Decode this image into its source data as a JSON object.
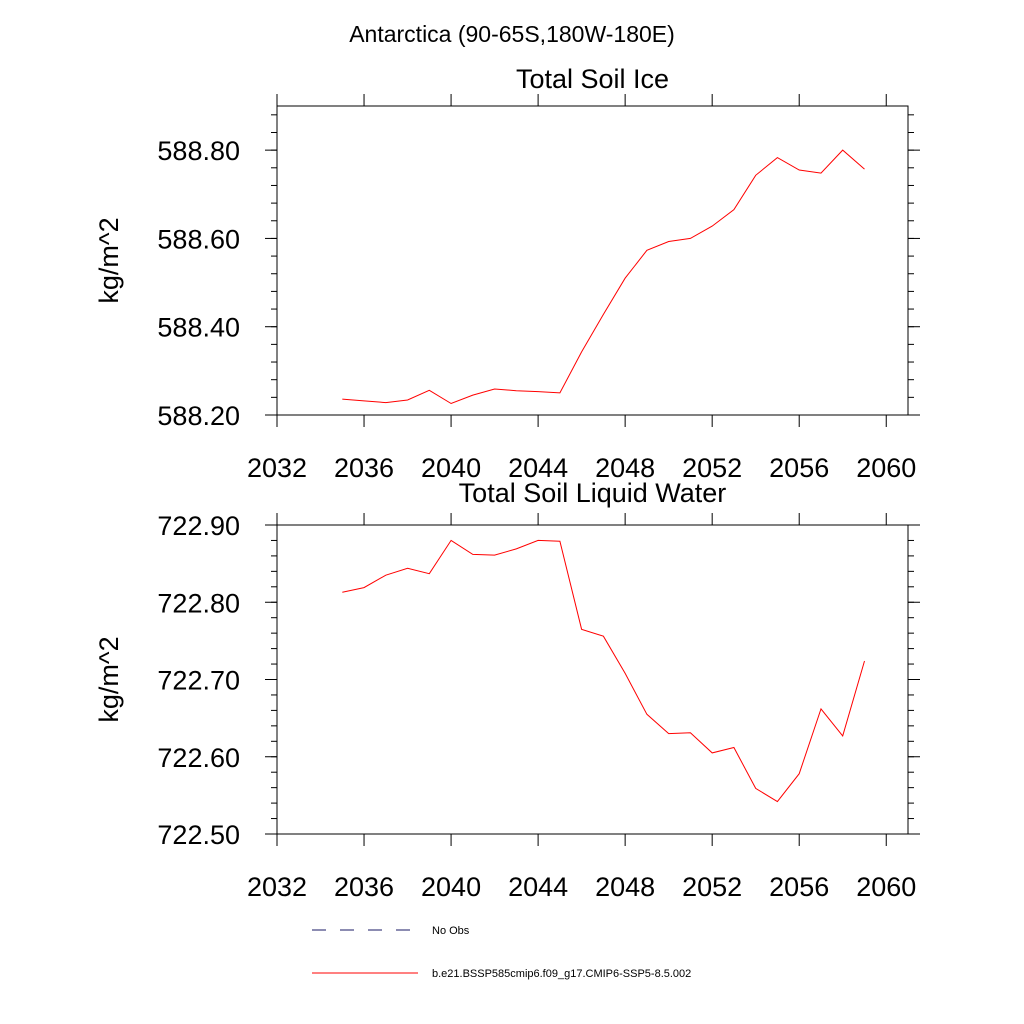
{
  "figure": {
    "suptitle": "Antarctica (90-65S,180W-180E)"
  },
  "chart_data": [
    {
      "type": "line",
      "title": "Total Soil Ice",
      "xlabel": "",
      "ylabel": "kg/m^2",
      "xlim": [
        2032,
        2061
      ],
      "ylim": [
        588.2,
        588.9
      ],
      "xticks": [
        2032,
        2036,
        2040,
        2044,
        2048,
        2052,
        2056,
        2060
      ],
      "xtick_labels": [
        "2032",
        "2036",
        "2040",
        "2044",
        "2048",
        "2052",
        "2056",
        "2060"
      ],
      "yticks": [
        588.2,
        588.4,
        588.6,
        588.8
      ],
      "ytick_labels": [
        "588.20",
        "588.40",
        "588.60",
        "588.80"
      ],
      "grid": false,
      "series": [
        {
          "name": "b.e21.BSSP585cmip6.f09_g17.CMIP6-SSP5-8.5.002",
          "color": "#ff0000",
          "x": [
            2035,
            2036,
            2037,
            2038,
            2039,
            2040,
            2041,
            2042,
            2043,
            2044,
            2045,
            2046,
            2047,
            2048,
            2049,
            2050,
            2051,
            2052,
            2053,
            2054,
            2055,
            2056,
            2057,
            2058,
            2059
          ],
          "y": [
            588.236,
            588.232,
            588.228,
            588.234,
            588.256,
            588.226,
            588.245,
            588.259,
            588.255,
            588.253,
            588.25,
            588.343,
            588.428,
            588.51,
            588.573,
            588.593,
            588.6,
            588.628,
            588.665,
            588.743,
            588.783,
            588.755,
            588.748,
            588.8,
            588.757
          ]
        }
      ]
    },
    {
      "type": "line",
      "title": "Total Soil Liquid Water",
      "xlabel": "",
      "ylabel": "kg/m^2",
      "xlim": [
        2032,
        2061
      ],
      "ylim": [
        722.5,
        722.9
      ],
      "xticks": [
        2032,
        2036,
        2040,
        2044,
        2048,
        2052,
        2056,
        2060
      ],
      "xtick_labels": [
        "2032",
        "2036",
        "2040",
        "2044",
        "2048",
        "2052",
        "2056",
        "2060"
      ],
      "yticks": [
        722.5,
        722.6,
        722.7,
        722.8,
        722.9
      ],
      "ytick_labels": [
        "722.50",
        "722.60",
        "722.70",
        "722.80",
        "722.90"
      ],
      "grid": false,
      "series": [
        {
          "name": "b.e21.BSSP585cmip6.f09_g17.CMIP6-SSP5-8.5.002",
          "color": "#ff0000",
          "x": [
            2035,
            2036,
            2037,
            2038,
            2039,
            2040,
            2041,
            2042,
            2043,
            2044,
            2045,
            2046,
            2047,
            2048,
            2049,
            2050,
            2051,
            2052,
            2053,
            2054,
            2055,
            2056,
            2057,
            2058,
            2059
          ],
          "y": [
            722.813,
            722.819,
            722.835,
            722.844,
            722.837,
            722.88,
            722.862,
            722.861,
            722.869,
            722.88,
            722.879,
            722.765,
            722.756,
            722.708,
            722.655,
            722.63,
            722.631,
            722.605,
            722.612,
            722.559,
            722.542,
            722.578,
            722.662,
            722.627,
            722.724
          ]
        }
      ]
    }
  ],
  "legend": {
    "placement": "bottom",
    "entries": [
      {
        "label": "No Obs",
        "style": "dashed",
        "color": "#1a1a66"
      },
      {
        "label": "b.e21.BSSP585cmip6.f09_g17.CMIP6-SSP5-8.5.002",
        "style": "solid",
        "color": "#ff0000"
      }
    ]
  }
}
